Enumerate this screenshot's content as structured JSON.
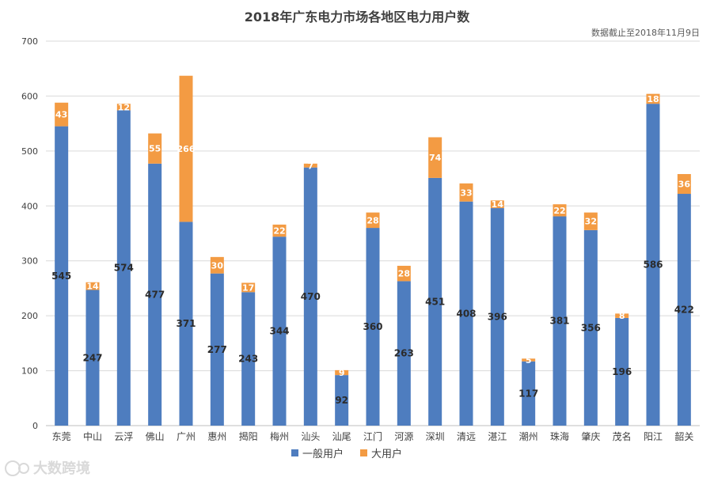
{
  "chart_data": {
    "type": "bar",
    "stacked": true,
    "title": "2018年广东电力市场各地区电力用户数",
    "note": "数据截止至2018年11月9日",
    "categories": [
      "东莞",
      "中山",
      "云浮",
      "佛山",
      "广州",
      "惠州",
      "揭阳",
      "梅州",
      "汕头",
      "汕尾",
      "江门",
      "河源",
      "深圳",
      "清远",
      "湛江",
      "潮州",
      "珠海",
      "肇庆",
      "茂名",
      "阳江",
      "韶关"
    ],
    "series": [
      {
        "name": "一般用户",
        "color": "#4e7dbf",
        "values": [
          545,
          247,
          574,
          477,
          371,
          277,
          243,
          344,
          470,
          92,
          360,
          263,
          451,
          408,
          396,
          117,
          381,
          356,
          196,
          586,
          422
        ]
      },
      {
        "name": "大用户",
        "color": "#f39b43",
        "values": [
          43,
          14,
          12,
          55,
          266,
          30,
          17,
          22,
          7,
          9,
          28,
          28,
          74,
          33,
          14,
          5,
          22,
          32,
          8,
          18,
          36
        ]
      }
    ],
    "ylim": [
      0,
      700
    ],
    "yticks": [
      0,
      100,
      200,
      300,
      400,
      500,
      600,
      700
    ],
    "xlabel": "",
    "ylabel": "",
    "legend_position": "bottom"
  },
  "watermark": "大数跨境"
}
